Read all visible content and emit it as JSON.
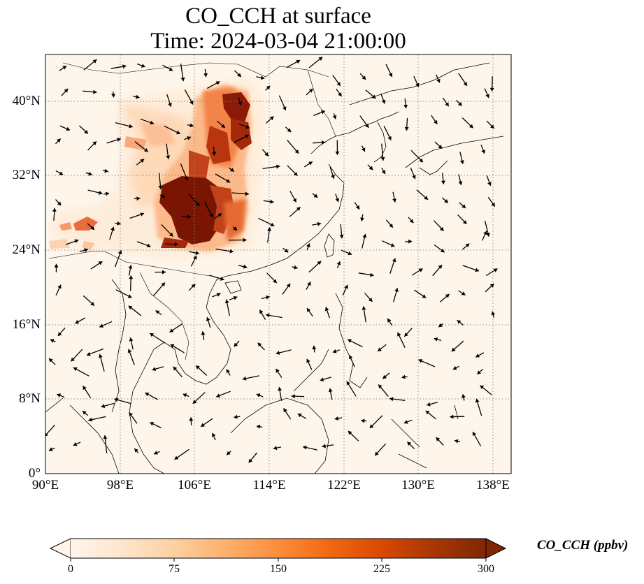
{
  "title": {
    "line1": "CO_CCH at surface",
    "line2": "Time: 2024-03-04 21:00:00"
  },
  "map": {
    "variable": "CO_CCH",
    "level": "surface",
    "extent": {
      "lon_min": 90,
      "lon_max": 140,
      "lat_min": 0,
      "lat_max": 45
    },
    "lat_labels": [
      {
        "value": 40,
        "text": "40°N"
      },
      {
        "value": 32,
        "text": "32°N"
      },
      {
        "value": 24,
        "text": "24°N"
      },
      {
        "value": 16,
        "text": "16°N"
      },
      {
        "value": 8,
        "text": "8°N"
      },
      {
        "value": 0,
        "text": "0°"
      }
    ],
    "lon_labels": [
      {
        "value": 90,
        "text": "90°E"
      },
      {
        "value": 98,
        "text": "98°E"
      },
      {
        "value": 106,
        "text": "106°E"
      },
      {
        "value": 114,
        "text": "114°E"
      },
      {
        "value": 122,
        "text": "122°E"
      },
      {
        "value": 130,
        "text": "130°E"
      },
      {
        "value": 138,
        "text": "138°E"
      }
    ]
  },
  "colorbar": {
    "label": "CO_CCH (ppbv)",
    "min": 0,
    "max": 300,
    "extend": "both",
    "ticks": [
      "0",
      "75",
      "150",
      "225",
      "300"
    ],
    "colormap": [
      "#fff5eb",
      "#fee6ce",
      "#fdd0a2",
      "#fdae6b",
      "#fd8d3c",
      "#f16913",
      "#d94801",
      "#a63603",
      "#7f2704"
    ]
  },
  "colors": {
    "background": "#fff6eb",
    "coast": "#000000",
    "grid": "#888888",
    "arrow": "#000000"
  }
}
